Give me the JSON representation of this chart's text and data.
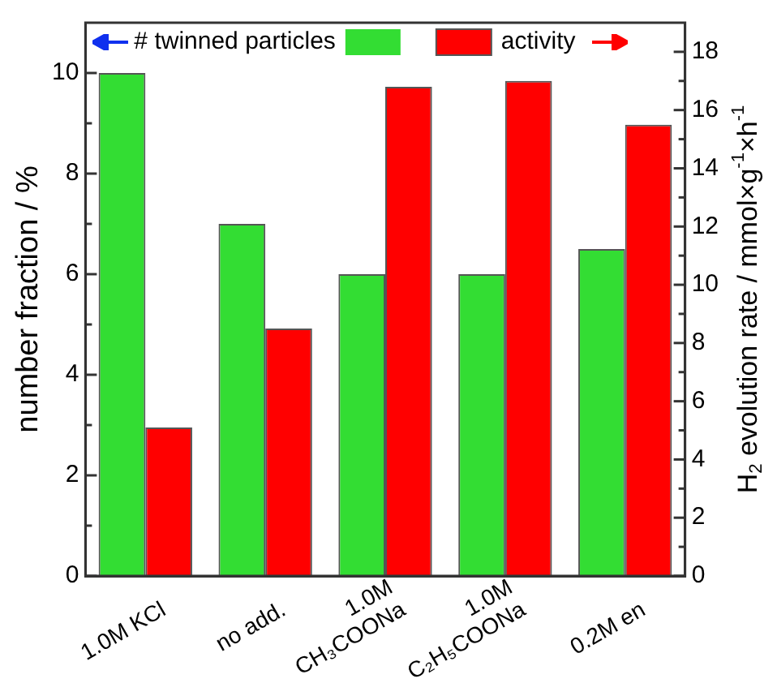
{
  "chart_data": {
    "type": "bar",
    "ylabel": "number fraction / %",
    "y2label": "H$_{2}$ evolution rate / mmol×g$^{-1}$×h$^{-1}$",
    "categories": [
      "1.0M KCl",
      "no add.",
      "1.0M\nCH₃COONa",
      "1.0M\nC₂H₅COONa",
      "0.2M en"
    ],
    "series": [
      {
        "name": "# twinned particles",
        "color": "#33dd33",
        "values": [
          10,
          7,
          6,
          6,
          6.5
        ]
      },
      {
        "name": "activity",
        "color": "#ff0000",
        "values": [
          5.1,
          8.5,
          16.8,
          17.0,
          15.5
        ],
        "axis": "y2"
      }
    ],
    "ylim": [
      0,
      11
    ],
    "yticks": [
      0,
      {
        "value": 1,
        "label": null
      },
      2,
      {
        "value": 3,
        "label": null
      },
      4,
      {
        "value": 5,
        "label": null
      },
      6,
      {
        "value": 7,
        "label": null
      },
      8,
      {
        "value": 9,
        "label": null
      },
      10
    ],
    "y2lim": [
      0,
      19
    ],
    "y2ticks": [
      0,
      {
        "value": 1,
        "label": null
      },
      2,
      {
        "value": 3,
        "label": null
      },
      4,
      {
        "value": 5,
        "label": null
      },
      6,
      {
        "value": 7,
        "label": null
      },
      8,
      {
        "value": 9,
        "label": null
      },
      10,
      {
        "value": 11,
        "label": null
      },
      12,
      {
        "value": 13,
        "label": null
      },
      14,
      {
        "value": 15,
        "label": null
      },
      16,
      {
        "value": 17,
        "label": null
      },
      18
    ],
    "legend": "top",
    "grid": false
  }
}
